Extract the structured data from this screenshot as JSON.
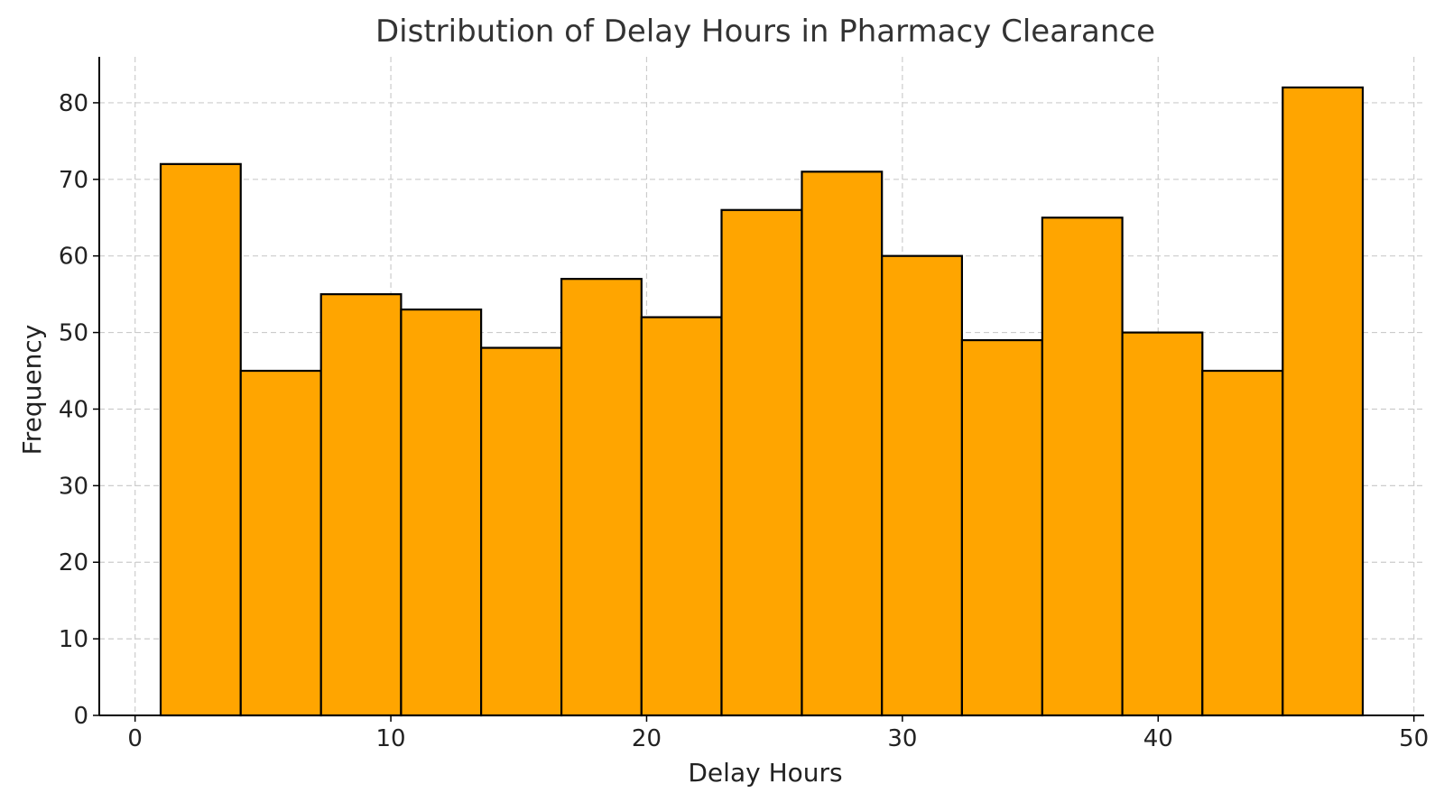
{
  "chart_data": {
    "type": "bar",
    "title": "Distribution of Delay Hours in Pharmacy Clearance",
    "xlabel": "Delay Hours",
    "ylabel": "Frequency",
    "xlim": [
      -1.4,
      50.4
    ],
    "ylim": [
      0,
      86
    ],
    "xticks": [
      0,
      10,
      20,
      30,
      40,
      50
    ],
    "yticks": [
      0,
      10,
      20,
      30,
      40,
      50,
      60,
      70,
      80
    ],
    "bin_edges": [
      1.0,
      4.13,
      7.27,
      10.4,
      13.53,
      16.67,
      19.8,
      22.93,
      26.07,
      29.2,
      32.33,
      35.47,
      38.6,
      41.73,
      44.87,
      48.0
    ],
    "values": [
      72,
      45,
      55,
      53,
      48,
      57,
      52,
      66,
      71,
      60,
      49,
      65,
      50,
      45,
      82
    ],
    "bar_color": "#FFA500",
    "edge_color": "#000000",
    "grid": true
  }
}
